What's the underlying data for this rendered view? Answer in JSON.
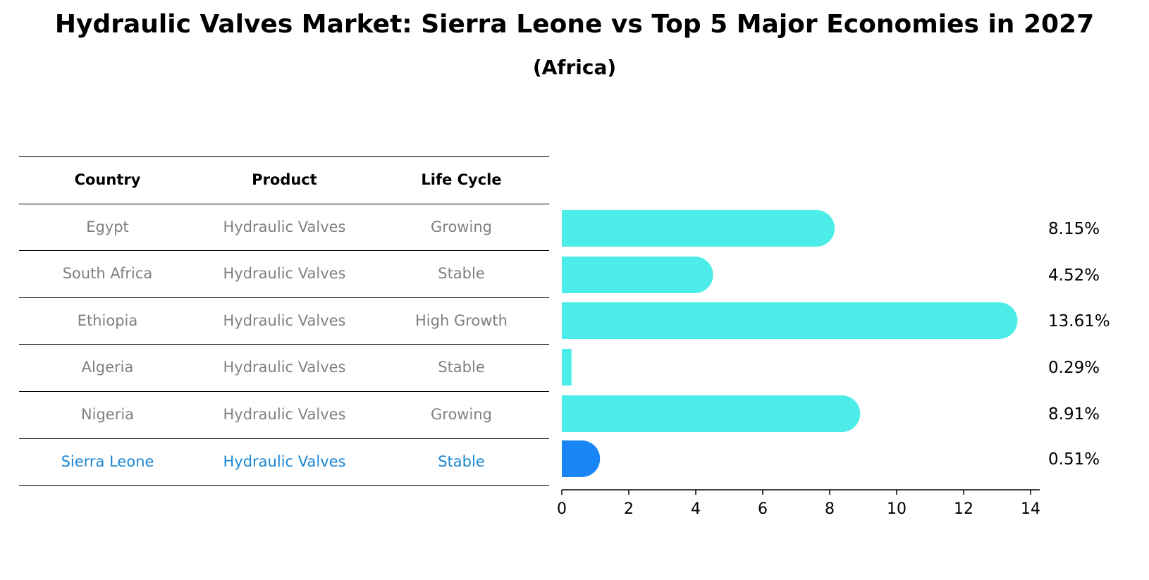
{
  "title": "Hydraulic Valves Market: Sierra Leone vs Top 5 Major Economies in 2027",
  "subtitle": "(Africa)",
  "table": {
    "headers": [
      "Country",
      "Product",
      "Life Cycle"
    ],
    "rows": [
      [
        "Egypt",
        "Hydraulic Valves",
        "Growing"
      ],
      [
        "South Africa",
        "Hydraulic Valves",
        "Stable"
      ],
      [
        "Ethiopia",
        "Hydraulic Valves",
        "High Growth"
      ],
      [
        "Algeria",
        "Hydraulic Valves",
        "Stable"
      ],
      [
        "Nigeria",
        "Hydraulic Valves",
        "Growing"
      ],
      [
        "Sierra Leone",
        "Hydraulic Valves",
        "Stable"
      ]
    ],
    "text_color": "#808080",
    "highlight_color": "#1a86d4"
  },
  "chart_data": {
    "type": "bar",
    "orientation": "horizontal",
    "categories": [
      "Egypt",
      "South Africa",
      "Ethiopia",
      "Algeria",
      "Nigeria",
      "Sierra Leone"
    ],
    "values": [
      8.15,
      4.52,
      13.61,
      0.29,
      8.91,
      0.51
    ],
    "value_labels": [
      "8.15%",
      "4.52%",
      "13.61%",
      "0.29%",
      "8.91%",
      "0.51%"
    ],
    "xlim": [
      0,
      14.2
    ],
    "xticks": [
      "0",
      "2",
      "4",
      "6",
      "8",
      "10",
      "12",
      "14"
    ],
    "bar_color": "#4cede9",
    "highlight_color": "#1a86f5",
    "highlight_category": "Sierra Leone",
    "grid": false
  }
}
